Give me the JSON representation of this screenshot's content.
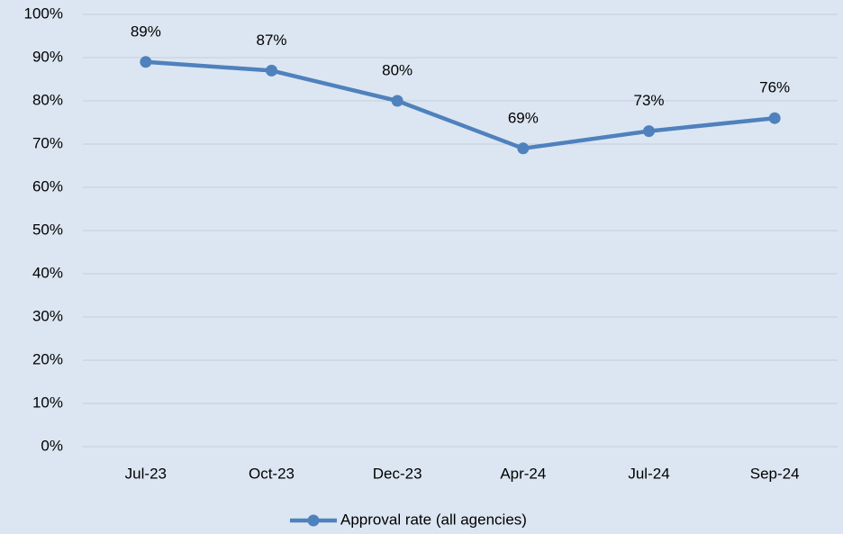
{
  "chart_data": {
    "type": "line",
    "categories": [
      "Jul-23",
      "Oct-23",
      "Dec-23",
      "Apr-24",
      "Jul-24",
      "Sep-24"
    ],
    "series": [
      {
        "name": "Approval rate (all agencies)",
        "color": "#4f81bd",
        "values": [
          89,
          87,
          80,
          69,
          73,
          76
        ],
        "value_labels": [
          "89%",
          "87%",
          "80%",
          "69%",
          "73%",
          "76%"
        ]
      }
    ],
    "ylim": [
      0,
      100
    ],
    "yticks": [
      {
        "value": 0,
        "label": "0%"
      },
      {
        "value": 10,
        "label": "10%"
      },
      {
        "value": 20,
        "label": "20%"
      },
      {
        "value": 30,
        "label": "30%"
      },
      {
        "value": 40,
        "label": "40%"
      },
      {
        "value": 50,
        "label": "50%"
      },
      {
        "value": 60,
        "label": "60%"
      },
      {
        "value": 70,
        "label": "70%"
      },
      {
        "value": 80,
        "label": "80%"
      },
      {
        "value": 90,
        "label": "90%"
      },
      {
        "value": 100,
        "label": "100%"
      }
    ],
    "grid": true,
    "legend": "bottom"
  }
}
